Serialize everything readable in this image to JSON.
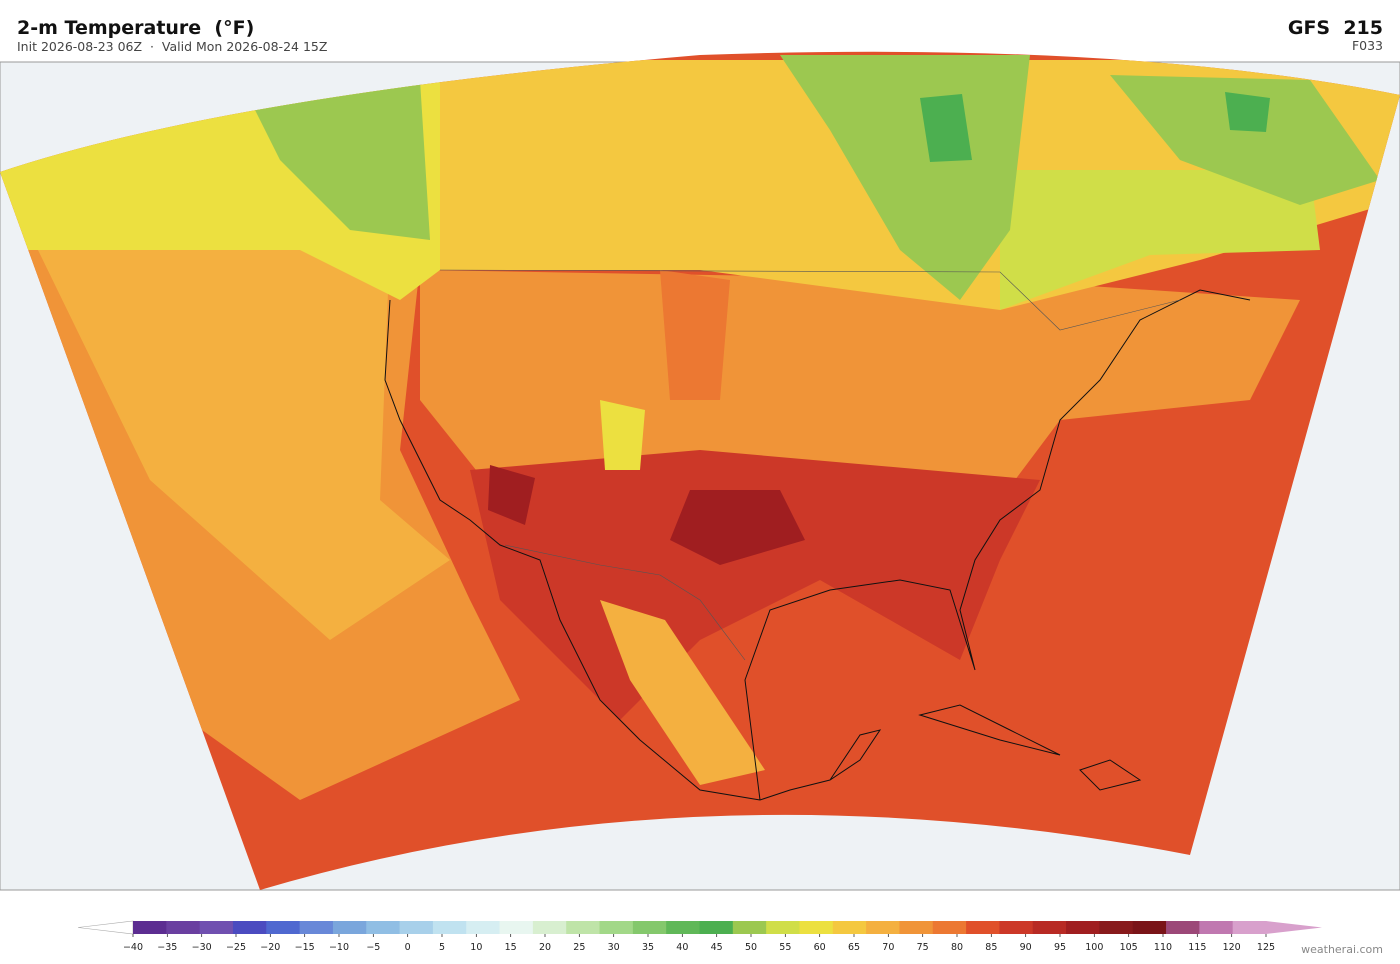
{
  "header": {
    "title": "2-m Temperature  (°F)",
    "subtitle": "Init 2026-08-23 06Z  ·  Valid Mon 2026-08-24 15Z",
    "model": "GFS  215",
    "frame": "F033"
  },
  "colorbar": {
    "ticks": [
      {
        "value": -40,
        "label": "−40"
      },
      {
        "value": -35,
        "label": "−35"
      },
      {
        "value": -30,
        "label": "−30"
      },
      {
        "value": -25,
        "label": "−25"
      },
      {
        "value": -20,
        "label": "−20"
      },
      {
        "value": -15,
        "label": "−15"
      },
      {
        "value": -10,
        "label": "−10"
      },
      {
        "value": -5,
        "label": "−5"
      },
      0,
      5,
      10,
      15,
      20,
      25,
      30,
      35,
      40,
      45,
      50,
      55,
      60,
      65,
      70,
      75,
      80,
      85,
      90,
      95,
      100,
      105,
      110,
      115,
      120,
      125
    ],
    "colors": [
      "#5c2d91",
      "#6a3fa0",
      "#7050b0",
      "#4b4bc0",
      "#4f68d0",
      "#6888d8",
      "#7aa6dc",
      "#90bee4",
      "#a8d0ea",
      "#c0e2f0",
      "#d6eef2",
      "#e8f6f0",
      "#d8efd0",
      "#bfe4a8",
      "#a2d888",
      "#84c86c",
      "#60b858",
      "#4caf50",
      "#9cc850",
      "#d0de48",
      "#ece040",
      "#f4c840",
      "#f4b040",
      "#f09438",
      "#ec7832",
      "#e0502a",
      "#cc3828",
      "#b82a24",
      "#a01e20",
      "#881a1c",
      "#7a1418",
      "#9c4878",
      "#c078b0",
      "#d8a0cc"
    ],
    "under_color": "#ffffff",
    "over_color": "#d8a0cc"
  },
  "footer": {
    "credit": "weatherai.com"
  }
}
